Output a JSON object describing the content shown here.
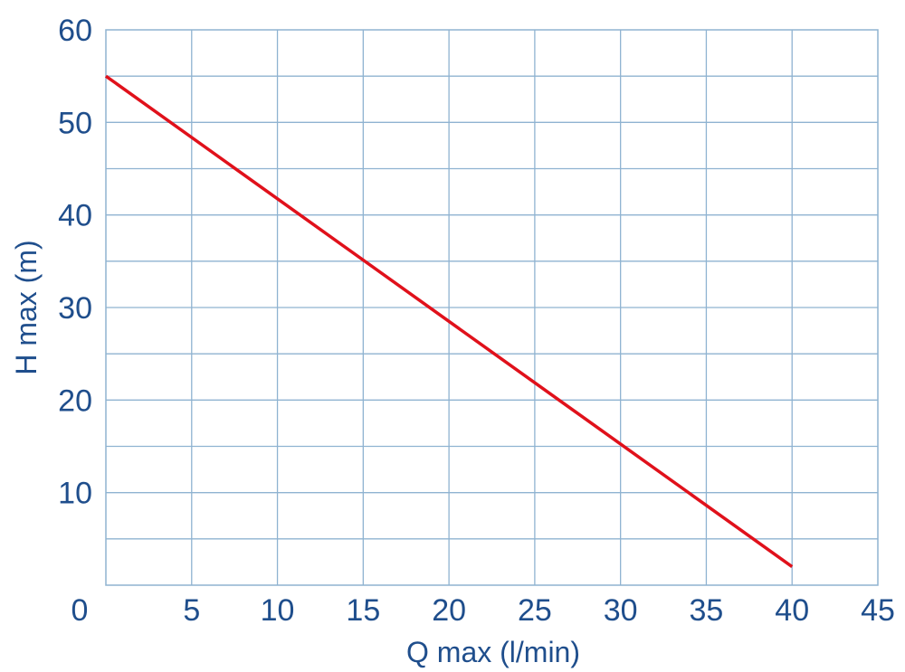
{
  "chart_data": {
    "type": "line",
    "xlabel": "Q max (l/min)",
    "ylabel": "H max (m)",
    "xlim": [
      0,
      45
    ],
    "ylim": [
      0,
      60
    ],
    "x_ticks": [
      0,
      5,
      10,
      15,
      20,
      25,
      30,
      35,
      40,
      45
    ],
    "y_ticks": [
      10,
      20,
      30,
      40,
      50,
      60
    ],
    "x_grid_step": 5,
    "y_grid_step": 5,
    "grid": true,
    "series": [
      {
        "color": "#e0111b",
        "x": [
          0,
          40
        ],
        "y": [
          55,
          2
        ]
      }
    ]
  }
}
